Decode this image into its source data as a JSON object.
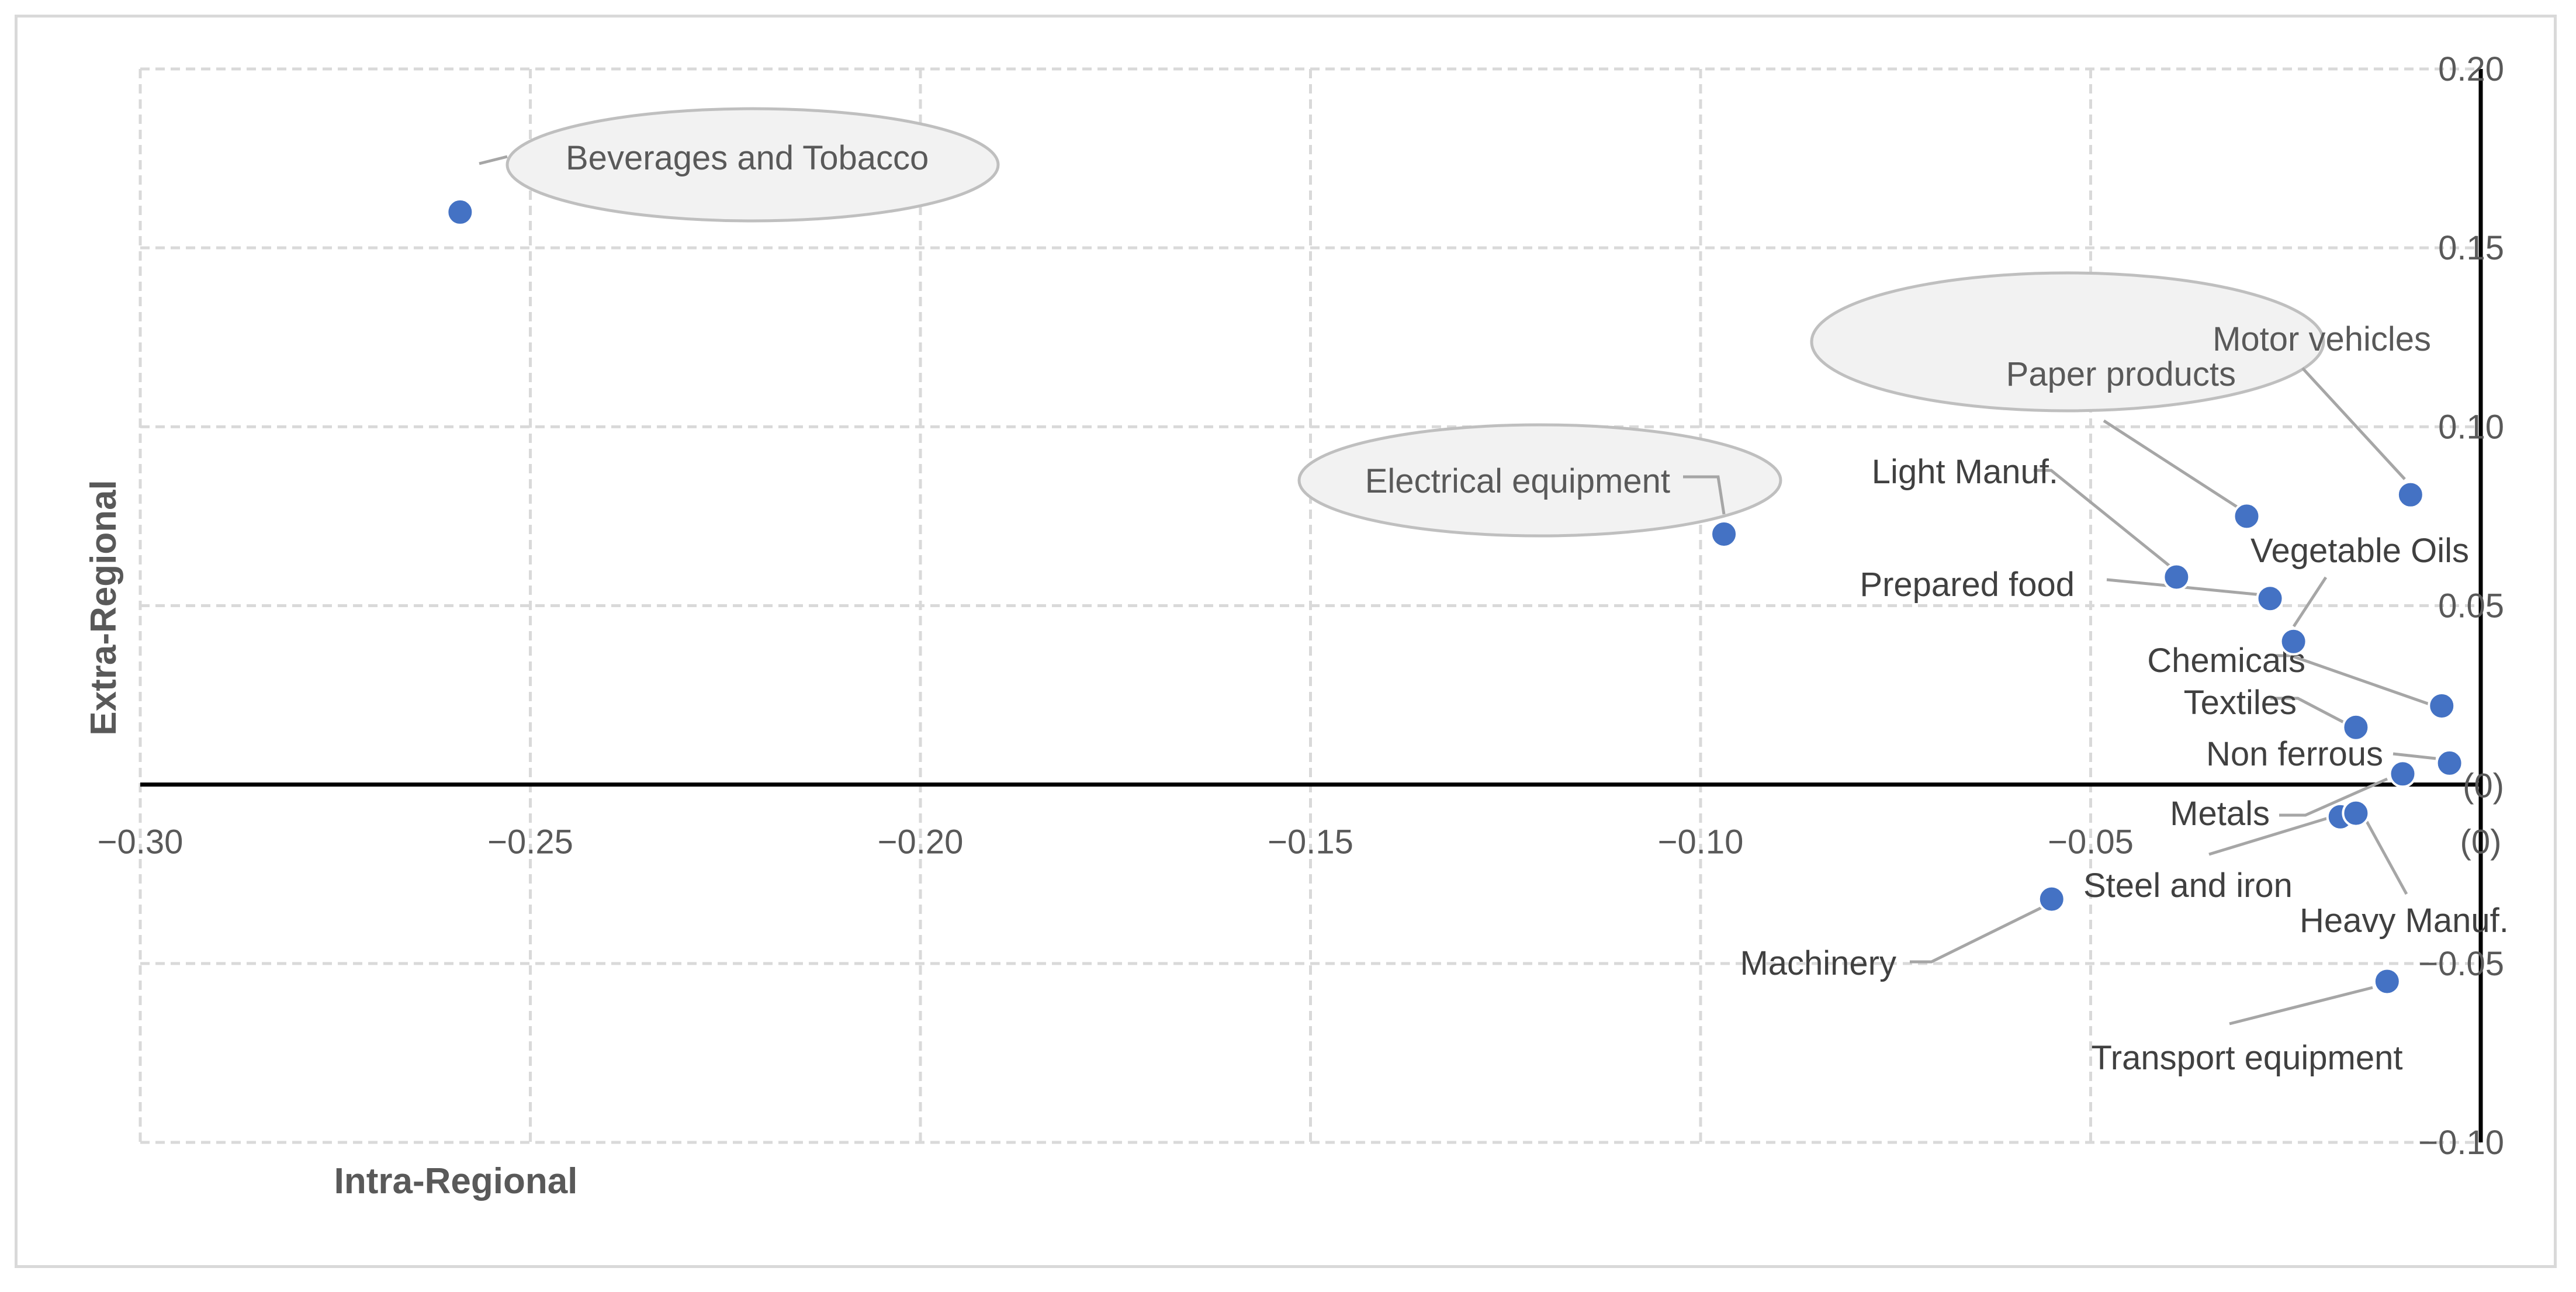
{
  "chart_data": {
    "type": "scatter",
    "title": "",
    "xlabel": "Intra-Regional",
    "ylabel": "Extra-Regional",
    "xlim": [
      -0.3,
      0
    ],
    "ylim": [
      -0.1,
      0.2
    ],
    "x_ticks": [
      {
        "value": -0.3,
        "label": "−0.30"
      },
      {
        "value": -0.25,
        "label": "−0.25"
      },
      {
        "value": -0.2,
        "label": "−0.20"
      },
      {
        "value": -0.15,
        "label": "−0.15"
      },
      {
        "value": -0.1,
        "label": "−0.10"
      },
      {
        "value": -0.05,
        "label": "−0.05"
      },
      {
        "value": 0,
        "label": "(0)"
      }
    ],
    "y_ticks": [
      {
        "value": 0.2,
        "label": "0.20"
      },
      {
        "value": 0.15,
        "label": "0.15"
      },
      {
        "value": 0.1,
        "label": "0.10"
      },
      {
        "value": 0.05,
        "label": "0.05"
      },
      {
        "value": 0,
        "label": "(0)"
      },
      {
        "value": -0.05,
        "label": "−0.05"
      },
      {
        "value": -0.1,
        "label": "−0.10"
      }
    ],
    "grid": true,
    "legend": "none",
    "marker_color": "#4472c4",
    "points": [
      {
        "name": "Beverages and Tobacco",
        "x": -0.259,
        "y": 0.16,
        "highlighted": true
      },
      {
        "name": "Electrical equipment",
        "x": -0.097,
        "y": 0.07,
        "highlighted": true
      },
      {
        "name": "Motor vehicles",
        "x": -0.009,
        "y": 0.081,
        "highlighted": true
      },
      {
        "name": "Paper products",
        "x": -0.03,
        "y": 0.075,
        "highlighted": true
      },
      {
        "name": "Light Manuf.",
        "x": -0.039,
        "y": 0.058,
        "highlighted": false
      },
      {
        "name": "Prepared food",
        "x": -0.027,
        "y": 0.052,
        "highlighted": false
      },
      {
        "name": "Vegetable Oils",
        "x": -0.024,
        "y": 0.04,
        "highlighted": false
      },
      {
        "name": "Chemicals",
        "x": -0.005,
        "y": 0.022,
        "highlighted": false
      },
      {
        "name": "Textiles",
        "x": -0.016,
        "y": 0.016,
        "highlighted": false
      },
      {
        "name": "Non ferrous",
        "x": -0.004,
        "y": 0.006,
        "highlighted": false
      },
      {
        "name": "Metals",
        "x": -0.01,
        "y": 0.003,
        "highlighted": false
      },
      {
        "name": "Steel and iron",
        "x": -0.018,
        "y": -0.009,
        "highlighted": false
      },
      {
        "name": "Heavy Manuf.",
        "x": -0.016,
        "y": -0.008,
        "highlighted": false
      },
      {
        "name": "Machinery",
        "x": -0.055,
        "y": -0.032,
        "highlighted": false
      },
      {
        "name": "Transport equipment",
        "x": -0.012,
        "y": -0.055,
        "highlighted": false
      }
    ]
  }
}
